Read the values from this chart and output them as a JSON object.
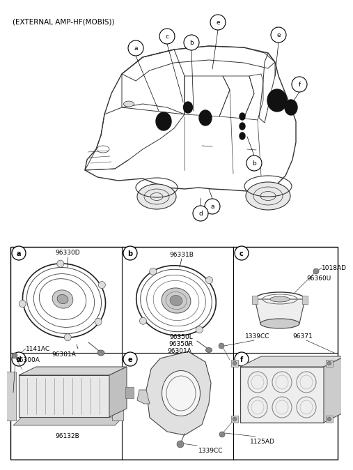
{
  "title": "(EXTERNAL AMP-HF(MOBIS))",
  "bg_color": "#ffffff",
  "text_color": "#000000",
  "part_labels": {
    "a_top": "96330D",
    "a_bot": "96301A",
    "b_top": "96331B",
    "b_bot": "96301A",
    "c_top1": "1018AD",
    "c_top2": "96360U",
    "d_top1": "1141AC",
    "d_top2": "96300A",
    "d_bot": "96132B",
    "e_top1": "96350L",
    "e_top2": "96350R",
    "e_bot": "1339CC",
    "f_top1": "1339CC",
    "f_top2": "96371",
    "f_bot": "1125AD"
  }
}
